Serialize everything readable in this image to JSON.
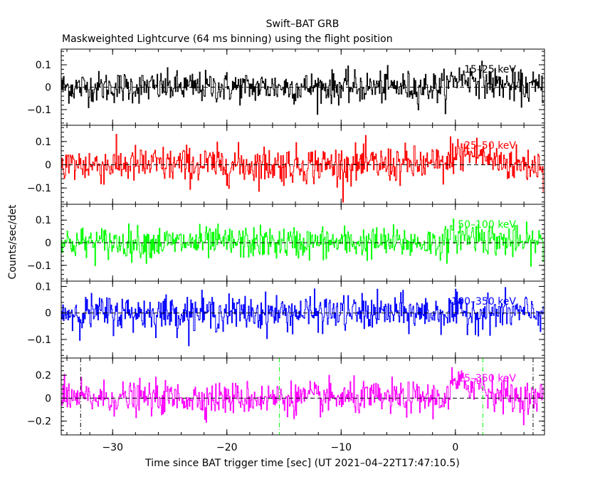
{
  "chart_data": {
    "type": "line",
    "title": "Swift–BAT GRB",
    "subtitle": "Maskweighted Lightcurve (64 ms binning) using the flight position",
    "xlabel": "Time since BAT trigger time [sec] (UT 2021–04–22T17:47:10.5)",
    "ylabel": "Counts/sec/det",
    "xlim": [
      -34.5,
      7.8
    ],
    "x_ticks": [
      -30,
      -20,
      -10,
      0
    ],
    "x_tick_labels": [
      "−30",
      "−20",
      "−10",
      "0"
    ],
    "bin_width_sec": 0.064,
    "panels": [
      {
        "name": "15–25 keV",
        "color": "#000000",
        "ylim": [
          -0.17,
          0.17
        ],
        "y_ticks": [
          -0.1,
          0,
          0.1
        ],
        "y_tick_labels": [
          "−0.1",
          "0",
          "0.1"
        ],
        "noise_sigma": 0.035,
        "burst_level": 0.04
      },
      {
        "name": "25–50 keV",
        "color": "#ff0000",
        "ylim": [
          -0.17,
          0.17
        ],
        "y_ticks": [
          -0.1,
          0,
          0.1
        ],
        "y_tick_labels": [
          "−0.1",
          "0",
          "0.1"
        ],
        "noise_sigma": 0.04,
        "burst_level": 0.045
      },
      {
        "name": "50–100 keV",
        "color": "#00ff00",
        "ylim": [
          -0.17,
          0.17
        ],
        "y_ticks": [
          -0.1,
          0,
          0.1
        ],
        "y_tick_labels": [
          "−0.1",
          "0",
          "0.1"
        ],
        "noise_sigma": 0.035,
        "burst_level": 0.03
      },
      {
        "name": "100–350 keV",
        "color": "#0000ff",
        "ylim": [
          -0.17,
          0.12
        ],
        "y_ticks": [
          -0.1,
          0,
          0.1
        ],
        "y_tick_labels": [
          "−0.1",
          "0",
          "0.1"
        ],
        "noise_sigma": 0.033,
        "burst_level": 0.0
      },
      {
        "name": "15–350 keV",
        "color": "#ff00ff",
        "ylim": [
          -0.32,
          0.35
        ],
        "y_ticks": [
          -0.2,
          0,
          0.2
        ],
        "y_tick_labels": [
          "−0.2",
          "0",
          "0.2"
        ],
        "noise_sigma": 0.07,
        "burst_level": 0.12
      }
    ],
    "burst_interval_sec": [
      -0.5,
      2.5
    ],
    "markers": [
      {
        "x": -32.8,
        "style": "dash-dot",
        "color": "#000000"
      },
      {
        "x": -15.4,
        "style": "dash-dot",
        "color": "#00ff00"
      },
      {
        "x": 2.4,
        "style": "dash-dot",
        "color": "#00ff00"
      },
      {
        "x": 6.8,
        "style": "dash-dot",
        "color": "#000000"
      }
    ]
  }
}
